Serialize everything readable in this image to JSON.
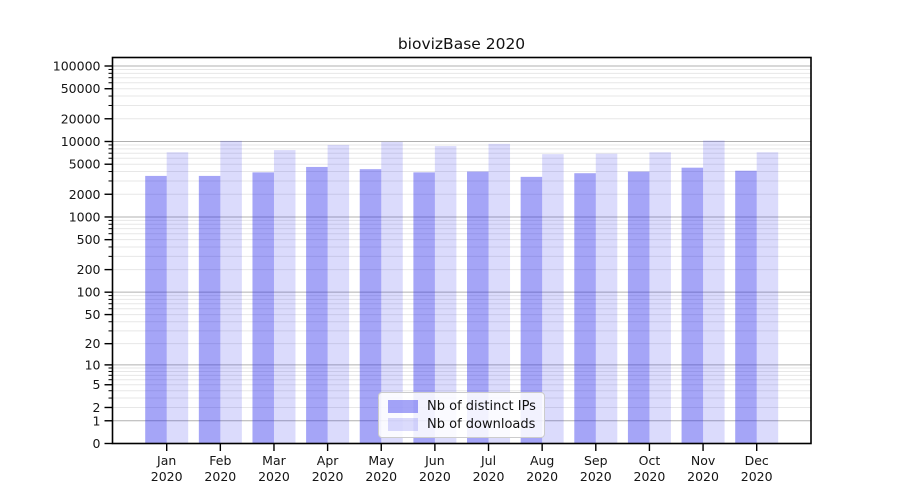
{
  "chart_data": {
    "type": "bar",
    "title": "biovizBase 2020",
    "year": "2020",
    "categories": [
      "Jan",
      "Feb",
      "Mar",
      "Apr",
      "May",
      "Jun",
      "Jul",
      "Aug",
      "Sep",
      "Oct",
      "Nov",
      "Dec"
    ],
    "series": [
      {
        "name": "Nb of distinct IPs",
        "fill": "rgba(40,40,235,0.42)",
        "values": [
          3500,
          3500,
          3900,
          4600,
          4300,
          3900,
          4000,
          3400,
          3800,
          4000,
          4500,
          4100
        ]
      },
      {
        "name": "Nb of downloads",
        "fill": "rgba(40,40,235,0.17)",
        "values": [
          7200,
          10200,
          7700,
          9000,
          9900,
          8700,
          9300,
          6800,
          6900,
          7200,
          10300,
          7200
        ]
      }
    ],
    "y_scale": "log10(1+y)",
    "ylim": [
      0,
      128000
    ],
    "y_tick_values": [
      0,
      1,
      2,
      5,
      10,
      20,
      50,
      100,
      200,
      500,
      1000,
      2000,
      5000,
      10000,
      20000,
      50000,
      100000
    ],
    "y_tick_labels": [
      "0",
      "1",
      "2",
      "5",
      "10",
      "20",
      "50",
      "100",
      "200",
      "500",
      "1000",
      "2000",
      "5000",
      "10000",
      "20000",
      "50000",
      "100000"
    ],
    "grid": {
      "major_color": "#b0b0b0",
      "minor_color": "#e7e7e7",
      "grid_on": true
    },
    "legend": {
      "position": "bottom-center"
    },
    "colors": {
      "spine": "#000000",
      "background": "#ffffff",
      "text": "#151515"
    }
  }
}
